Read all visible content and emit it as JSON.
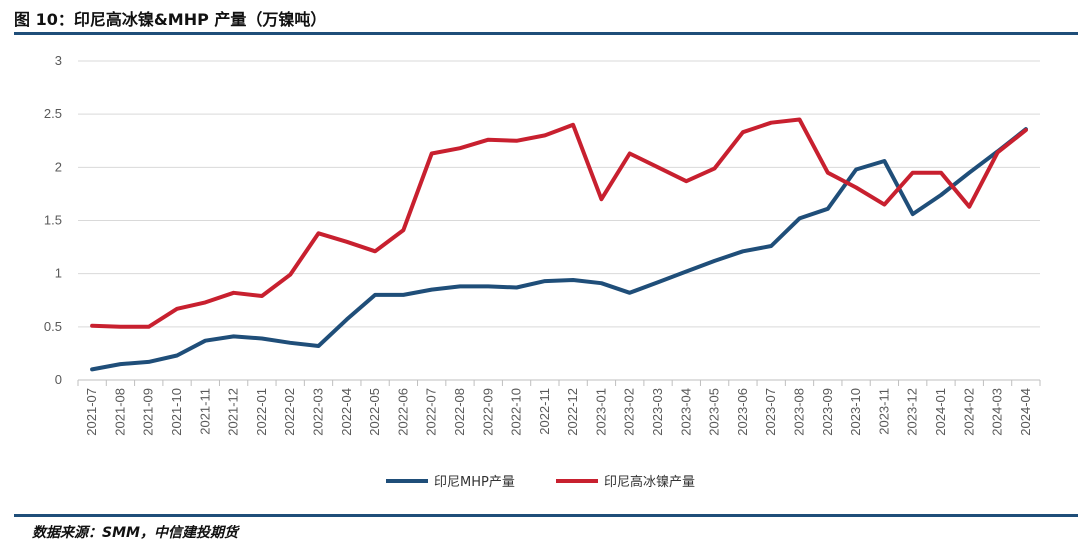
{
  "title": "图 10：印尼高冰镍&MHP 产量（万镍吨）",
  "source": "数据来源：SMM，中信建投期货",
  "chart_data": {
    "type": "line",
    "title": "",
    "xlabel": "",
    "ylabel": "",
    "ylim": [
      0,
      3
    ],
    "yticks": [
      "0",
      "0.5",
      "1",
      "1.5",
      "2",
      "2.5",
      "3"
    ],
    "grid": true,
    "legend_position": "bottom-center",
    "x": [
      "2021-07",
      "2021-08",
      "2021-09",
      "2021-10",
      "2021-11",
      "2021-12",
      "2022-01",
      "2022-02",
      "2022-03",
      "2022-04",
      "2022-05",
      "2022-06",
      "2022-07",
      "2022-08",
      "2022-09",
      "2022-10",
      "2022-11",
      "2022-12",
      "2023-01",
      "2023-02",
      "2023-03",
      "2023-04",
      "2023-05",
      "2023-06",
      "2023-07",
      "2023-08",
      "2023-09",
      "2023-10",
      "2023-11",
      "2023-12",
      "2024-01",
      "2024-02",
      "2024-03",
      "2024-04"
    ],
    "series": [
      {
        "name": "印尼MHP产量",
        "color": "#1f4e79",
        "values": [
          0.1,
          0.15,
          0.17,
          0.23,
          0.37,
          0.41,
          0.39,
          0.35,
          0.32,
          0.57,
          0.8,
          0.8,
          0.85,
          0.88,
          0.88,
          0.87,
          0.93,
          0.94,
          0.91,
          0.82,
          0.92,
          1.02,
          1.12,
          1.21,
          1.26,
          1.52,
          1.61,
          1.98,
          2.06,
          1.56,
          1.74,
          1.95,
          2.15,
          2.36
        ]
      },
      {
        "name": "印尼高冰镍产量",
        "color": "#c8202f",
        "values": [
          0.51,
          0.5,
          0.5,
          0.67,
          0.73,
          0.82,
          0.79,
          0.99,
          1.38,
          1.3,
          1.21,
          1.41,
          2.13,
          2.18,
          2.26,
          2.25,
          2.3,
          2.4,
          1.7,
          2.13,
          2.0,
          1.87,
          1.99,
          2.33,
          2.42,
          2.45,
          1.95,
          1.81,
          1.65,
          1.95,
          1.95,
          1.63,
          2.14,
          2.35
        ]
      }
    ]
  }
}
